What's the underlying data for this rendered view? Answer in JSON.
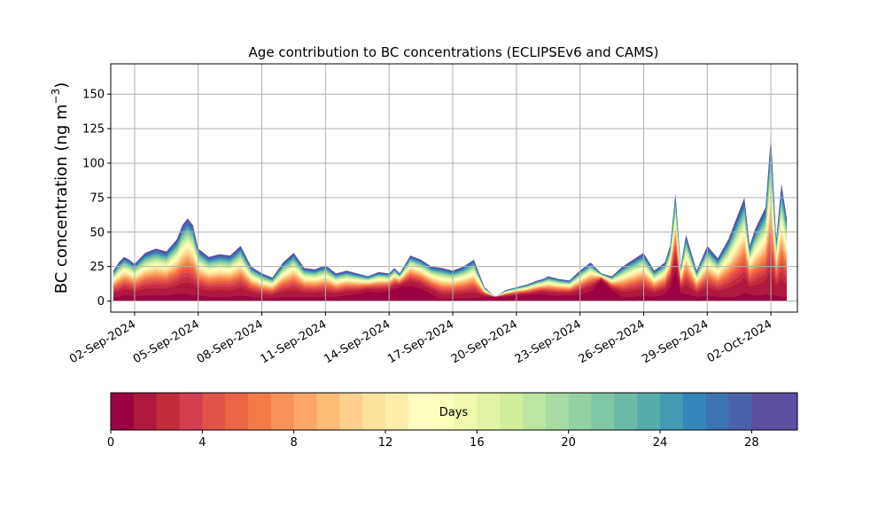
{
  "chart_data": {
    "type": "area",
    "title": "Age contribution to BC concentrations (ECLIPSEv6 and CAMS)",
    "ylabel": "BC concentration (ng m",
    "ylabel_sup": "−3",
    "ylabel_close": ")",
    "xlabel": "",
    "ylim": [
      -8,
      172
    ],
    "yticks": [
      0,
      25,
      50,
      75,
      100,
      125,
      150
    ],
    "xlim": [
      "2024-08-31T21:00",
      "2024-10-03T06:00"
    ],
    "xticks": [
      "02-Sep-2024",
      "05-Sep-2024",
      "08-Sep-2024",
      "11-Sep-2024",
      "14-Sep-2024",
      "17-Sep-2024",
      "20-Sep-2024",
      "23-Sep-2024",
      "26-Sep-2024",
      "29-Sep-2024",
      "02-Oct-2024"
    ],
    "xtick_dates": [
      "2024-09-02",
      "2024-09-05",
      "2024-09-08",
      "2024-09-11",
      "2024-09-14",
      "2024-09-17",
      "2024-09-20",
      "2024-09-23",
      "2024-09-26",
      "2024-09-29",
      "2024-10-02"
    ],
    "grid": true,
    "stack_bands": 30,
    "series_note_layers": "age bands 0–30 days, stacked",
    "time": [
      "2024-09-01T00:00",
      "2024-09-01T06:00",
      "2024-09-01T12:00",
      "2024-09-01T18:00",
      "2024-09-02T00:00",
      "2024-09-02T12:00",
      "2024-09-03T00:00",
      "2024-09-03T12:00",
      "2024-09-04T00:00",
      "2024-09-04T06:00",
      "2024-09-04T12:00",
      "2024-09-04T18:00",
      "2024-09-05T00:00",
      "2024-09-05T12:00",
      "2024-09-06T00:00",
      "2024-09-06T12:00",
      "2024-09-07T00:00",
      "2024-09-07T12:00",
      "2024-09-08T00:00",
      "2024-09-08T12:00",
      "2024-09-09T00:00",
      "2024-09-09T12:00",
      "2024-09-10T00:00",
      "2024-09-10T12:00",
      "2024-09-11T00:00",
      "2024-09-11T12:00",
      "2024-09-12T00:00",
      "2024-09-12T12:00",
      "2024-09-13T00:00",
      "2024-09-13T12:00",
      "2024-09-14T00:00",
      "2024-09-14T06:00",
      "2024-09-14T12:00",
      "2024-09-15T00:00",
      "2024-09-15T12:00",
      "2024-09-16T00:00",
      "2024-09-16T12:00",
      "2024-09-17T00:00",
      "2024-09-17T12:00",
      "2024-09-18T00:00",
      "2024-09-18T12:00",
      "2024-09-19T00:00",
      "2024-09-19T12:00",
      "2024-09-20T00:00",
      "2024-09-20T12:00",
      "2024-09-21T00:00",
      "2024-09-21T06:00",
      "2024-09-21T12:00",
      "2024-09-21T18:00",
      "2024-09-22T00:00",
      "2024-09-22T12:00",
      "2024-09-23T00:00",
      "2024-09-23T12:00",
      "2024-09-24T00:00",
      "2024-09-24T12:00",
      "2024-09-25T00:00",
      "2024-09-25T12:00",
      "2024-09-26T00:00",
      "2024-09-26T12:00",
      "2024-09-27T00:00",
      "2024-09-27T06:00",
      "2024-09-27T12:00",
      "2024-09-27T18:00",
      "2024-09-28T00:00",
      "2024-09-28T12:00",
      "2024-09-29T00:00",
      "2024-09-29T12:00",
      "2024-09-30T00:00",
      "2024-09-30T06:00",
      "2024-09-30T12:00",
      "2024-09-30T18:00",
      "2024-10-01T00:00",
      "2024-10-01T06:00",
      "2024-10-01T12:00",
      "2024-10-01T18:00",
      "2024-10-02T00:00",
      "2024-10-02T06:00",
      "2024-10-02T12:00",
      "2024-10-02T18:00"
    ],
    "total": [
      22,
      28,
      32,
      30,
      27,
      35,
      38,
      36,
      45,
      55,
      60,
      55,
      38,
      32,
      34,
      33,
      40,
      25,
      20,
      17,
      28,
      35,
      24,
      23,
      26,
      20,
      22,
      20,
      18,
      21,
      20,
      24,
      20,
      33,
      30,
      25,
      24,
      22,
      25,
      30,
      10,
      3,
      8,
      10,
      12,
      15,
      16,
      18,
      17,
      16,
      15,
      22,
      28,
      20,
      18,
      25,
      30,
      35,
      22,
      28,
      40,
      78,
      25,
      48,
      22,
      40,
      31,
      45,
      55,
      65,
      75,
      40,
      52,
      60,
      68,
      120,
      45,
      85,
      60
    ],
    "age0": [
      3,
      3,
      4,
      4,
      3,
      4,
      4,
      4,
      5,
      5,
      5,
      4,
      4,
      3,
      3,
      3,
      4,
      3,
      2,
      2,
      3,
      3,
      3,
      3,
      3,
      3,
      4,
      5,
      7,
      6,
      7,
      9,
      10,
      11,
      9,
      5,
      1,
      2,
      2,
      2,
      3,
      3,
      3,
      4,
      4,
      5,
      5,
      4,
      4,
      4,
      4,
      5,
      7,
      15,
      8,
      3,
      3,
      4,
      3,
      5,
      10,
      22,
      6,
      5,
      3,
      4,
      3,
      3,
      3,
      4,
      6,
      5,
      4,
      4,
      5,
      4,
      4,
      3,
      3
    ]
  },
  "colorbar": {
    "label": "Days",
    "ticks": [
      "0",
      "4",
      "8",
      "12",
      "16",
      "20",
      "24",
      "28"
    ],
    "min": 0,
    "max": 30,
    "colors": [
      "#9e0142",
      "#b1183f",
      "#c42b3d",
      "#d43d4f",
      "#e25349",
      "#ec6443",
      "#f57a48",
      "#f8915a",
      "#fca66a",
      "#fdbb76",
      "#fed08c",
      "#fee29b",
      "#feeea9",
      "#fffdbf",
      "#fbfdba",
      "#f0f9ad",
      "#e2f4a3",
      "#d2ee9b",
      "#bee5a0",
      "#a7dba4",
      "#92d1a4",
      "#7ec7a5",
      "#6bbaa6",
      "#57acaa",
      "#4499b4",
      "#3586bb",
      "#3b73b3",
      "#4c61ab",
      "#5e4fa2",
      "#5e4fa2"
    ]
  }
}
